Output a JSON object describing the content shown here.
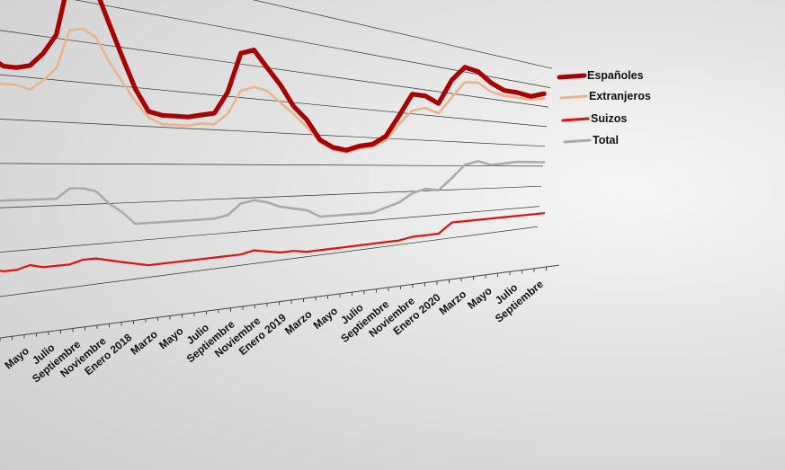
{
  "chart_data": {
    "type": "line",
    "title": "",
    "xlabel": "",
    "ylabel": "",
    "grid": true,
    "legend_position": "right",
    "x_tick_labels": [
      "Mayo",
      "Julio",
      "Septiembre",
      "Noviembre",
      "Enero 2018",
      "Marzo",
      "Mayo",
      "Julio",
      "Septiembre",
      "Noviembre",
      "Enero 2019",
      "Marzo",
      "Mayo",
      "Julio",
      "Septiembre",
      "Noviembre",
      "Enero 2020",
      "Marzo",
      "Mayo",
      "Julio",
      "Septiembre"
    ],
    "series": [
      {
        "name": "Españoles",
        "color": "#a80000",
        "values": [
          82,
          73,
          67,
          65,
          65,
          66,
          70,
          76,
          94,
          95,
          92,
          82,
          72,
          62,
          55,
          54,
          54,
          54,
          55,
          56,
          64,
          79,
          81,
          75,
          69,
          61,
          56,
          48,
          45,
          44,
          46,
          47,
          51,
          61,
          72,
          72,
          69,
          82,
          90,
          89,
          84,
          81,
          81,
          80,
          83
        ]
      },
      {
        "name": "Extranjeros",
        "color": "#e8b48c",
        "values": [
          72,
          65,
          60,
          60,
          60,
          59,
          62,
          66,
          78,
          79,
          77,
          70,
          64,
          58,
          53,
          51,
          51,
          51,
          52,
          52,
          56,
          65,
          67,
          66,
          62,
          58,
          53,
          47,
          44,
          43,
          45,
          46,
          49,
          57,
          64,
          66,
          64,
          73,
          82,
          83,
          79,
          78,
          78,
          78,
          80
        ]
      },
      {
        "name": "Suizos",
        "color": "#e01010",
        "values": [
          9,
          8,
          8,
          7,
          7,
          8,
          7,
          7,
          7,
          8,
          8,
          7,
          6,
          5,
          4,
          4,
          4,
          4,
          4,
          4,
          4,
          4,
          5,
          4,
          3,
          3,
          2,
          2,
          2,
          2,
          2,
          2,
          2,
          2,
          3,
          3,
          3,
          8,
          8,
          8,
          8,
          8,
          8,
          8,
          8
        ]
      },
      {
        "name": "Total",
        "color": "#aaaaaa",
        "values": [
          32,
          29,
          27,
          27,
          27,
          27,
          27,
          27,
          30,
          30,
          29,
          25,
          22,
          18,
          18,
          18,
          18,
          18,
          18,
          18,
          19,
          23,
          24,
          23,
          21,
          20,
          19,
          16,
          16,
          16,
          16,
          16,
          18,
          20,
          24,
          26,
          25,
          31,
          38,
          40,
          38,
          39,
          40,
          40,
          40
        ]
      }
    ]
  }
}
